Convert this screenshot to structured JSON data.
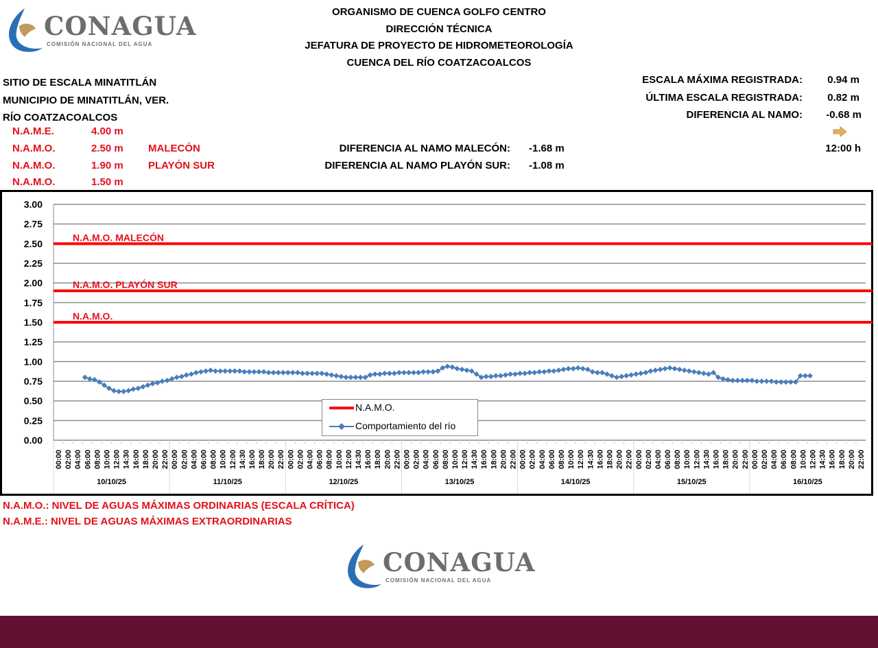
{
  "header": {
    "logo_text": "CONAGUA",
    "logo_subtitle": "COMISIÓN NACIONAL DEL AGUA",
    "lines": [
      "ORGANISMO DE CUENCA GOLFO CENTRO",
      "DIRECCIÓN TÉCNICA",
      "JEFATURA DE PROYECTO DE HIDROMETEOROLOGÍA",
      "CUENCA DEL RÍO COATZACOALCOS"
    ]
  },
  "site": {
    "lines": [
      "SITIO DE ESCALA MINATITLÁN",
      "MUNICIPIO DE MINATITLÁN, VER.",
      "RÍO COATZACOALCOS"
    ]
  },
  "levels": [
    {
      "label": "N.A.M.E.",
      "value": "4.00 m",
      "place": ""
    },
    {
      "label": "N.A.M.O.",
      "value": "2.50 m",
      "place": "MALECÓN"
    },
    {
      "label": "N.A.M.O.",
      "value": "1.90 m",
      "place": "PLAYÓN SUR"
    },
    {
      "label": "N.A.M.O.",
      "value": "1.50 m",
      "place": ""
    }
  ],
  "differences": [
    {
      "label": "DIFERENCIA AL NAMO MALECÓN:",
      "value": "-1.68 m"
    },
    {
      "label": "DIFERENCIA AL NAMO PLAYÓN SUR:",
      "value": "-1.08 m"
    }
  ],
  "summary": [
    {
      "label": "ESCALA MÁXIMA REGISTRADA:",
      "value": "0.94 m"
    },
    {
      "label": "ÚLTIMA ESCALA REGISTRADA:",
      "value": "0.82 m"
    },
    {
      "label": "DIFERENCIA AL NAMO:",
      "value": "-0.68 m"
    }
  ],
  "trend_icon": "arrow-right-icon",
  "trend_color": "#e2b15a",
  "time": "12:00 h",
  "footnotes": [
    "N.A.M.O.: NIVEL DE AGUAS MÁXIMAS ORDINARIAS (ESCALA CRÍTICA)",
    "N.A.M.E.: NIVEL DE AGUAS MÁXIMAS EXTRAORDINARIAS"
  ],
  "chart_data": {
    "type": "line",
    "ylim": [
      0,
      3
    ],
    "yticks": [
      "0.00",
      "0.25",
      "0.50",
      "0.75",
      "1.00",
      "1.25",
      "1.50",
      "1.75",
      "2.00",
      "2.25",
      "2.50",
      "2.75",
      "3.00"
    ],
    "grid": true,
    "legend_placement": "bottom-center",
    "days": [
      "10/10/25",
      "11/10/25",
      "12/10/25",
      "13/10/25",
      "14/10/25",
      "15/10/25",
      "16/10/25"
    ],
    "hour_ticks": [
      "00:00",
      "02:00",
      "04:00",
      "06:00",
      "08:00",
      "10:00",
      "12:00",
      "14:30",
      "16:00",
      "18:00",
      "20:00",
      "22:00"
    ],
    "reference_lines": [
      {
        "name": "N.A.M.O.",
        "label": "N.A.M.O. MALECÓN",
        "value": 2.5,
        "color": "#ff0000"
      },
      {
        "name": "N.A.M.O.",
        "label": "N.A.M.O. PLAYÓN SUR",
        "value": 1.9,
        "color": "#ff0000"
      },
      {
        "name": "N.A.M.O.",
        "label": "N.A.M.O.",
        "value": 1.5,
        "color": "#ff0000"
      }
    ],
    "series": [
      {
        "name": "Comportamiento del río",
        "color": "#4a7ebb",
        "x_start": "10/10/25 06:00",
        "interval_hours": 1,
        "values": [
          0.8,
          0.78,
          0.77,
          0.74,
          0.7,
          0.66,
          0.63,
          0.62,
          0.62,
          0.63,
          0.65,
          0.66,
          0.68,
          0.7,
          0.72,
          0.73,
          0.75,
          0.76,
          0.78,
          0.8,
          0.81,
          0.83,
          0.84,
          0.86,
          0.87,
          0.88,
          0.89,
          0.88,
          0.88,
          0.88,
          0.88,
          0.88,
          0.88,
          0.87,
          0.87,
          0.87,
          0.87,
          0.87,
          0.86,
          0.86,
          0.86,
          0.86,
          0.86,
          0.86,
          0.86,
          0.85,
          0.85,
          0.85,
          0.85,
          0.85,
          0.84,
          0.83,
          0.82,
          0.81,
          0.8,
          0.8,
          0.8,
          0.8,
          0.8,
          0.83,
          0.84,
          0.84,
          0.85,
          0.85,
          0.85,
          0.86,
          0.86,
          0.86,
          0.86,
          0.86,
          0.87,
          0.87,
          0.87,
          0.88,
          0.92,
          0.94,
          0.93,
          0.91,
          0.9,
          0.89,
          0.88,
          0.84,
          0.8,
          0.81,
          0.81,
          0.82,
          0.82,
          0.83,
          0.84,
          0.84,
          0.85,
          0.85,
          0.86,
          0.86,
          0.87,
          0.87,
          0.88,
          0.88,
          0.89,
          0.9,
          0.91,
          0.91,
          0.92,
          0.91,
          0.9,
          0.87,
          0.86,
          0.86,
          0.84,
          0.82,
          0.8,
          0.81,
          0.82,
          0.83,
          0.84,
          0.85,
          0.86,
          0.88,
          0.89,
          0.9,
          0.91,
          0.92,
          0.91,
          0.9,
          0.89,
          0.88,
          0.87,
          0.86,
          0.85,
          0.84,
          0.86,
          0.8,
          0.78,
          0.77,
          0.76,
          0.76,
          0.76,
          0.76,
          0.76,
          0.75,
          0.75,
          0.75,
          0.75,
          0.74,
          0.74,
          0.74,
          0.74,
          0.74,
          0.82,
          0.82,
          0.82
        ]
      }
    ],
    "legend": [
      "N.A.M.O.",
      "Comportamiento del río"
    ]
  }
}
